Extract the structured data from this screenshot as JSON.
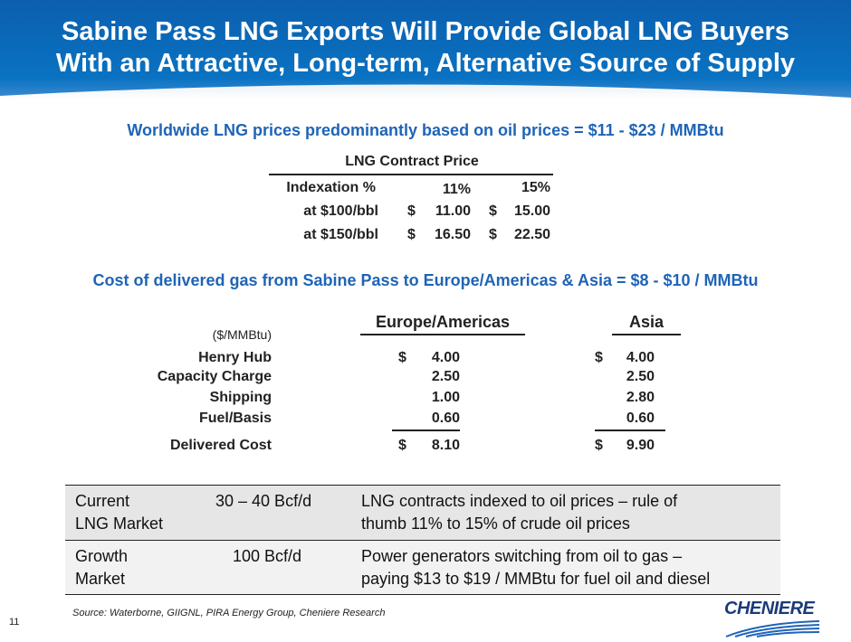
{
  "title_line1": "Sabine Pass LNG Exports Will Provide Global LNG Buyers",
  "title_line2": "With an Attractive, Long-term, Alternative Source of Supply",
  "subtitle1": "Worldwide LNG prices predominantly based on oil prices = $11 - $23 / MMBtu",
  "contract": {
    "title": "LNG Contract Price",
    "header": [
      "Indexation %",
      "11%",
      "15%"
    ],
    "rows": [
      {
        "label": "at $100/bbl",
        "c1": "11.00",
        "c2": "15.00"
      },
      {
        "label": "at $150/bbl",
        "c1": "16.50",
        "c2": "22.50"
      }
    ],
    "currency": "$"
  },
  "subtitle2": "Cost of delivered gas from Sabine Pass to Europe/Americas & Asia = $8 - $10 / MMBtu",
  "cost": {
    "unit": "($/MMBtu)",
    "col1": "Europe/Americas",
    "col2": "Asia",
    "currency": "$",
    "rows": [
      {
        "label": "Henry Hub",
        "eu": "4.00",
        "asia": "4.00"
      },
      {
        "label": "Capacity Charge",
        "eu": "2.50",
        "asia": "2.50"
      },
      {
        "label": "Shipping",
        "eu": "1.00",
        "asia": "2.80"
      },
      {
        "label": "Fuel/Basis",
        "eu": "0.60",
        "asia": "0.60"
      }
    ],
    "total": {
      "label": "Delivered Cost",
      "eu": "8.10",
      "asia": "9.90"
    }
  },
  "market": [
    {
      "name1": "Current",
      "name2": "LNG Market",
      "size": "30 – 40 Bcf/d",
      "d1": "LNG contracts indexed to oil prices – rule of",
      "d2": "thumb 11% to 15% of crude oil prices"
    },
    {
      "name1": "Growth",
      "name2": "Market",
      "size": "100 Bcf/d",
      "d1": "Power generators switching from oil to gas –",
      "d2": "paying $13 to $19 / MMBtu for fuel oil and diesel"
    }
  ],
  "source": "Source: Waterborne, GIIGNL, PIRA Energy Group, Cheniere Research",
  "page_number": "11",
  "logo": "CHENIERE",
  "colors": {
    "header": "#0a67b5",
    "accent": "#1f64b7"
  }
}
